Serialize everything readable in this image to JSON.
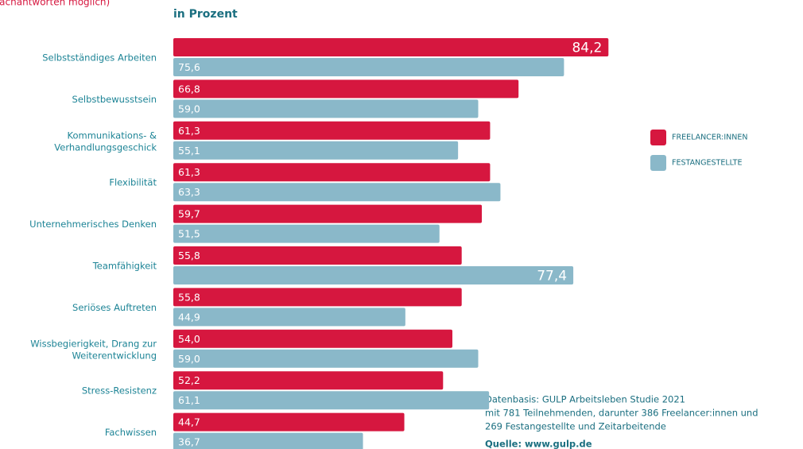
{
  "chart_data": {
    "type": "bar",
    "orientation": "horizontal",
    "subtitle": "(Mehrfachantworten möglich)",
    "unit_label": "in Prozent",
    "categories": [
      "Selbstständiges Arbeiten",
      "Selbstbewusstsein",
      "Kommunikations- &\nVerhandlungsgeschick",
      "Flexibilität",
      "Unternehmerisches Denken",
      "Teamfähigkeit",
      "Seriöses Auftreten",
      "Wissbegierigkeit, Drang zur\nWeiterentwicklung",
      "Stress-Resistenz",
      "Fachwissen"
    ],
    "series": [
      {
        "name": "FREELANCER:INNEN",
        "color": "#d6173f",
        "values": [
          84.2,
          66.8,
          61.3,
          61.3,
          59.7,
          55.8,
          55.8,
          54.0,
          52.2,
          44.7
        ],
        "value_labels": [
          "84,2",
          "66,8",
          "61,3",
          "61,3",
          "59,7",
          "55,8",
          "55,8",
          "54,0",
          "52,2",
          "44,7"
        ]
      },
      {
        "name": "FESTANGESTELLTE",
        "color": "#8ab8c9",
        "values": [
          75.6,
          59.0,
          55.1,
          63.3,
          51.5,
          77.4,
          44.9,
          59.0,
          61.1,
          36.7
        ],
        "value_labels": [
          "75,6",
          "59,0",
          "55,1",
          "63,3",
          "51,5",
          "77,4",
          "44,9",
          "59,0",
          "61,1",
          "36,7"
        ]
      }
    ],
    "xlim": [
      0,
      100
    ],
    "legend": "right",
    "notes": [
      "Datenbasis: GULP Arbeitsleben Studie 2021",
      "mit 781 Teilnehmenden, darunter 386 Freelancer:innen und",
      "269 Festangestellte und Zeitarbeitende"
    ],
    "source": "Quelle: www.gulp.de"
  }
}
